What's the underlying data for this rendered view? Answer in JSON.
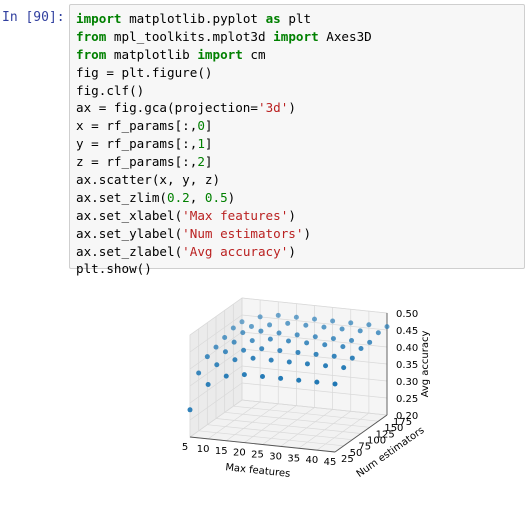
{
  "cell": {
    "prompt": "In [90]:",
    "lines": [
      [
        {
          "t": "import",
          "c": "kw"
        },
        {
          "t": " matplotlib.pyplot "
        },
        {
          "t": "as",
          "c": "kw"
        },
        {
          "t": " plt"
        }
      ],
      [
        {
          "t": "from",
          "c": "kw"
        },
        {
          "t": " mpl_toolkits.mplot3d "
        },
        {
          "t": "import",
          "c": "kw"
        },
        {
          "t": " Axes3D"
        }
      ],
      [
        {
          "t": "from",
          "c": "kw"
        },
        {
          "t": " matplotlib "
        },
        {
          "t": "import",
          "c": "kw"
        },
        {
          "t": " cm"
        }
      ],
      [
        {
          "t": "fig = plt.figure()"
        }
      ],
      [
        {
          "t": "fig.clf()"
        }
      ],
      [
        {
          "t": "ax = fig.gca(projection="
        },
        {
          "t": "'3d'",
          "c": "str"
        },
        {
          "t": ")"
        }
      ],
      [
        {
          "t": "x = rf_params[:,"
        },
        {
          "t": "0",
          "c": "num"
        },
        {
          "t": "]"
        }
      ],
      [
        {
          "t": "y = rf_params[:,"
        },
        {
          "t": "1",
          "c": "num"
        },
        {
          "t": "]"
        }
      ],
      [
        {
          "t": "z = rf_params[:,"
        },
        {
          "t": "2",
          "c": "num"
        },
        {
          "t": "]"
        }
      ],
      [
        {
          "t": "ax.scatter(x, y, z)"
        }
      ],
      [
        {
          "t": "ax.set_zlim("
        },
        {
          "t": "0.2",
          "c": "num"
        },
        {
          "t": ", "
        },
        {
          "t": "0.5",
          "c": "num"
        },
        {
          "t": ")"
        }
      ],
      [
        {
          "t": "ax.set_xlabel("
        },
        {
          "t": "'Max features'",
          "c": "str"
        },
        {
          "t": ")"
        }
      ],
      [
        {
          "t": "ax.set_ylabel("
        },
        {
          "t": "'Num estimators'",
          "c": "str"
        },
        {
          "t": ")"
        }
      ],
      [
        {
          "t": "ax.set_zlabel("
        },
        {
          "t": "'Avg accuracy'",
          "c": "str"
        },
        {
          "t": ")"
        }
      ],
      [
        {
          "t": "plt.show()"
        }
      ]
    ]
  },
  "colors": {
    "keyword": "#008000",
    "string": "#ba2121",
    "number": "#008000",
    "prompt": "#303f9f",
    "marker": "#1f77b4"
  },
  "chart_data": {
    "type": "scatter",
    "projection": "3d",
    "title": "",
    "xlabel": "Max features",
    "ylabel": "Num estimators",
    "zlabel": "Avg accuracy",
    "xticks": [
      "5",
      "10",
      "15",
      "20",
      "25",
      "30",
      "35",
      "40",
      "45"
    ],
    "yticks": [
      "25",
      "50",
      "75",
      "100",
      "125",
      "150",
      "175"
    ],
    "zticks": [
      "0.20",
      "0.25",
      "0.30",
      "0.35",
      "0.40",
      "0.45",
      "0.50"
    ],
    "xlim": [
      5,
      45
    ],
    "ylim": [
      25,
      175
    ],
    "zlim": [
      0.2,
      0.5
    ],
    "grid": true,
    "x": [
      5,
      5,
      5,
      5,
      5,
      5,
      5,
      10,
      10,
      10,
      10,
      10,
      10,
      10,
      15,
      15,
      15,
      15,
      15,
      15,
      15,
      20,
      20,
      20,
      20,
      20,
      20,
      20,
      25,
      25,
      25,
      25,
      25,
      25,
      25,
      30,
      30,
      30,
      30,
      30,
      30,
      30,
      35,
      35,
      35,
      35,
      35,
      35,
      35,
      40,
      40,
      40,
      40,
      40,
      40,
      40,
      45,
      45,
      45,
      45,
      45,
      45,
      45
    ],
    "y": [
      25,
      50,
      75,
      100,
      125,
      150,
      175,
      25,
      50,
      75,
      100,
      125,
      150,
      175,
      25,
      50,
      75,
      100,
      125,
      150,
      175,
      25,
      50,
      75,
      100,
      125,
      150,
      175,
      25,
      50,
      75,
      100,
      125,
      150,
      175,
      25,
      50,
      75,
      100,
      125,
      150,
      175,
      25,
      50,
      75,
      100,
      125,
      150,
      175,
      25,
      50,
      75,
      100,
      125,
      150,
      175,
      25,
      50,
      75,
      100,
      125,
      150,
      175
    ],
    "z": [
      0.28,
      0.37,
      0.4,
      0.41,
      0.42,
      0.43,
      0.43,
      0.36,
      0.4,
      0.42,
      0.43,
      0.44,
      0.44,
      0.45,
      0.39,
      0.42,
      0.43,
      0.44,
      0.45,
      0.45,
      0.46,
      0.4,
      0.43,
      0.44,
      0.45,
      0.45,
      0.46,
      0.46,
      0.4,
      0.43,
      0.44,
      0.45,
      0.45,
      0.46,
      0.46,
      0.4,
      0.43,
      0.44,
      0.45,
      0.45,
      0.46,
      0.46,
      0.4,
      0.43,
      0.44,
      0.45,
      0.45,
      0.46,
      0.46,
      0.4,
      0.43,
      0.44,
      0.45,
      0.45,
      0.46,
      0.46,
      0.4,
      0.43,
      0.44,
      0.45,
      0.45,
      0.46,
      0.46
    ]
  }
}
